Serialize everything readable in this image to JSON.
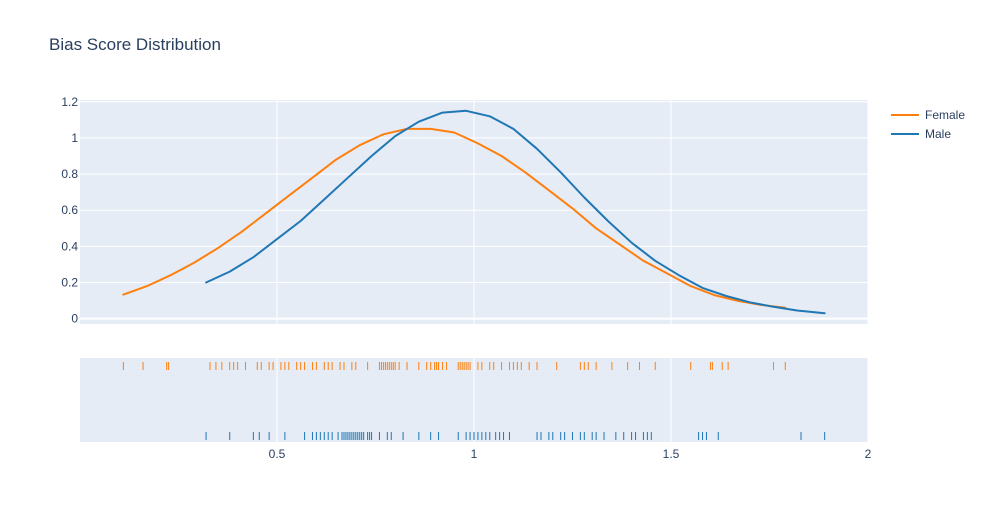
{
  "chart_data": {
    "type": "line",
    "title": "Bias Score Distribution",
    "xlabel": "",
    "ylabel": "",
    "xlim": [
      0.0,
      2.0
    ],
    "ylim": [
      -0.03,
      1.21
    ],
    "x_ticks": [
      "0.5",
      "1",
      "1.5",
      "2"
    ],
    "x_tick_values": [
      0.5,
      1,
      1.5,
      2
    ],
    "y_ticks": [
      "0",
      "0.2",
      "0.4",
      "0.6",
      "0.8",
      "1",
      "1.2"
    ],
    "y_tick_values": [
      0,
      0.2,
      0.4,
      0.6,
      0.8,
      1.0,
      1.2
    ],
    "grid": true,
    "legend_position": "top-right",
    "series": [
      {
        "name": "Female",
        "color": "#ff7f0e",
        "x": [
          0.11,
          0.17,
          0.23,
          0.29,
          0.35,
          0.41,
          0.47,
          0.53,
          0.59,
          0.65,
          0.71,
          0.77,
          0.83,
          0.89,
          0.95,
          1.01,
          1.07,
          1.13,
          1.19,
          1.25,
          1.31,
          1.37,
          1.43,
          1.49,
          1.55,
          1.61,
          1.67,
          1.73,
          1.79
        ],
        "y": [
          0.133,
          0.18,
          0.24,
          0.31,
          0.39,
          0.48,
          0.58,
          0.68,
          0.78,
          0.88,
          0.96,
          1.02,
          1.05,
          1.05,
          1.03,
          0.97,
          0.9,
          0.81,
          0.71,
          0.61,
          0.5,
          0.41,
          0.32,
          0.25,
          0.18,
          0.13,
          0.098,
          0.075,
          0.06
        ]
      },
      {
        "name": "Male",
        "color": "#1f77b4",
        "x": [
          0.32,
          0.38,
          0.44,
          0.5,
          0.56,
          0.62,
          0.68,
          0.74,
          0.8,
          0.86,
          0.92,
          0.98,
          1.04,
          1.1,
          1.16,
          1.22,
          1.28,
          1.34,
          1.4,
          1.46,
          1.52,
          1.58,
          1.64,
          1.7,
          1.76,
          1.82,
          1.89
        ],
        "y": [
          0.2,
          0.26,
          0.34,
          0.44,
          0.54,
          0.66,
          0.78,
          0.9,
          1.01,
          1.09,
          1.14,
          1.15,
          1.12,
          1.05,
          0.94,
          0.81,
          0.67,
          0.54,
          0.42,
          0.32,
          0.24,
          0.17,
          0.125,
          0.09,
          0.065,
          0.045,
          0.03
        ]
      }
    ],
    "rug": [
      {
        "name": "Female",
        "color": "#ff7f0e",
        "values": [
          0.11,
          0.16,
          0.22,
          0.225,
          0.33,
          0.345,
          0.36,
          0.38,
          0.39,
          0.4,
          0.42,
          0.45,
          0.46,
          0.48,
          0.49,
          0.51,
          0.52,
          0.53,
          0.55,
          0.56,
          0.57,
          0.59,
          0.6,
          0.62,
          0.63,
          0.64,
          0.66,
          0.67,
          0.69,
          0.7,
          0.73,
          0.76,
          0.765,
          0.77,
          0.775,
          0.78,
          0.785,
          0.79,
          0.795,
          0.8,
          0.81,
          0.83,
          0.86,
          0.88,
          0.89,
          0.9,
          0.905,
          0.91,
          0.92,
          0.93,
          0.96,
          0.965,
          0.97,
          0.975,
          0.98,
          0.985,
          0.99,
          1.01,
          1.02,
          1.04,
          1.05,
          1.07,
          1.09,
          1.1,
          1.11,
          1.12,
          1.14,
          1.16,
          1.21,
          1.27,
          1.28,
          1.29,
          1.31,
          1.35,
          1.39,
          1.42,
          1.46,
          1.55,
          1.6,
          1.605,
          1.63,
          1.645,
          1.76,
          1.79
        ]
      },
      {
        "name": "Male",
        "color": "#1f77b4",
        "values": [
          0.32,
          0.38,
          0.44,
          0.455,
          0.48,
          0.52,
          0.57,
          0.59,
          0.6,
          0.61,
          0.62,
          0.63,
          0.64,
          0.655,
          0.665,
          0.67,
          0.675,
          0.68,
          0.685,
          0.69,
          0.695,
          0.7,
          0.705,
          0.71,
          0.715,
          0.72,
          0.73,
          0.735,
          0.74,
          0.76,
          0.78,
          0.79,
          0.82,
          0.86,
          0.89,
          0.91,
          0.96,
          0.98,
          0.99,
          1.0,
          1.01,
          1.02,
          1.03,
          1.04,
          1.055,
          1.065,
          1.075,
          1.09,
          1.16,
          1.17,
          1.19,
          1.2,
          1.22,
          1.23,
          1.25,
          1.27,
          1.28,
          1.3,
          1.31,
          1.33,
          1.36,
          1.38,
          1.4,
          1.41,
          1.43,
          1.44,
          1.45,
          1.57,
          1.58,
          1.59,
          1.62,
          1.83,
          1.89
        ]
      }
    ]
  }
}
